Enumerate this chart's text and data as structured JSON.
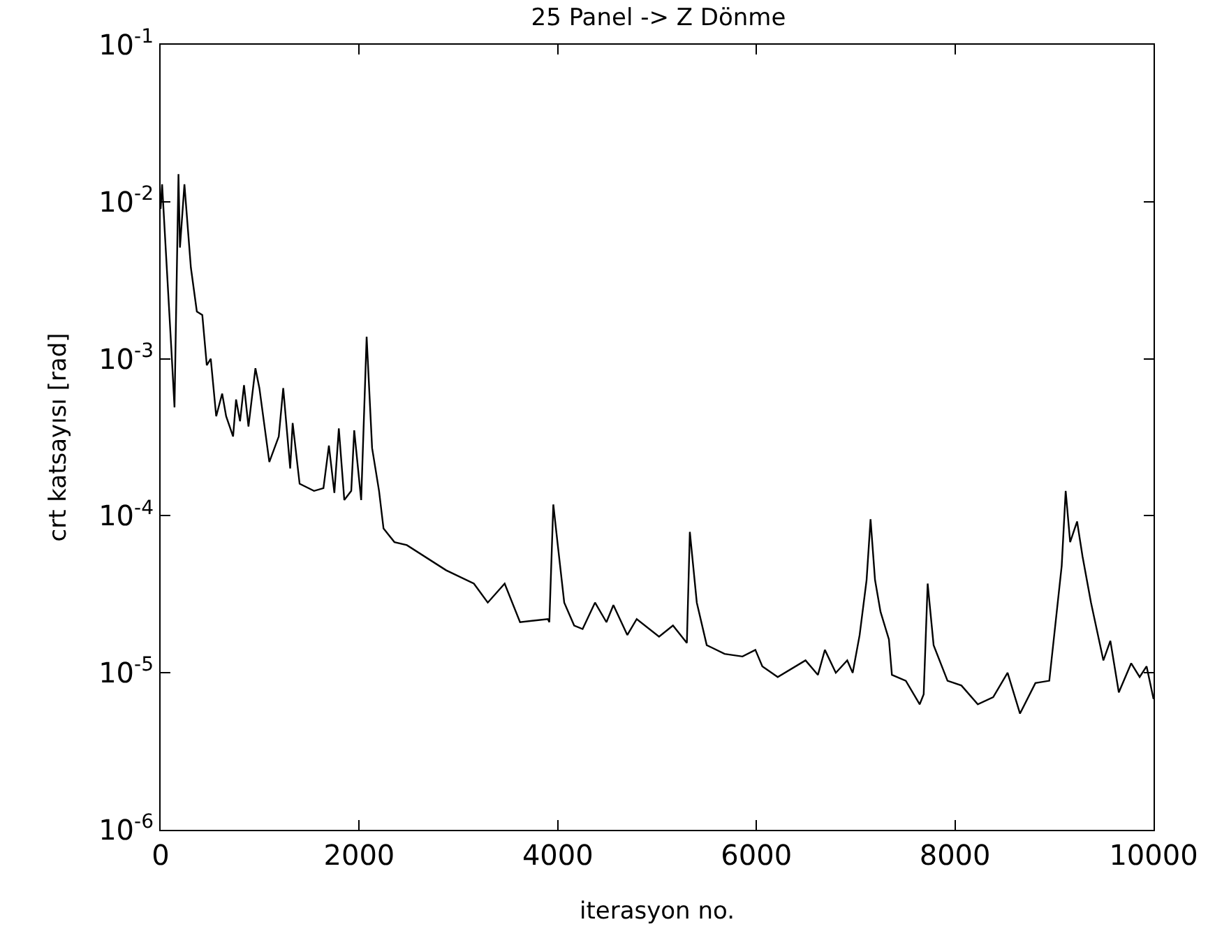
{
  "chart_data": {
    "type": "line",
    "title": "25 Panel -> Z Dönme",
    "xlabel": "iterasyon no.",
    "ylabel": "crt katsayısı [rad]",
    "log": "y",
    "marker": "none",
    "line_style": "solid",
    "xlim": [
      0,
      10000
    ],
    "xticks": [
      0,
      2000,
      4000,
      6000,
      8000,
      10000
    ],
    "ylim": [
      1e-06,
      0.1
    ],
    "yticks": [
      {
        "value": 1e-06,
        "label": "10$^{-6}$"
      },
      {
        "value": 1e-05,
        "label": "10$^{-5}$"
      },
      {
        "value": 0.0001,
        "label": "10$^{-4}$"
      },
      {
        "value": 0.001,
        "label": "10$^{-3}$"
      },
      {
        "value": 0.01,
        "label": "10$^{-2}$"
      },
      {
        "value": 0.1,
        "label": "10$^{-1}$"
      }
    ],
    "series": [
      {
        "color": "#000000",
        "x": [
          0,
          15,
          110,
          140,
          180,
          195,
          240,
          305,
          365,
          420,
          465,
          505,
          560,
          620,
          660,
          730,
          760,
          800,
          840,
          885,
          955,
          995,
          1095,
          1190,
          1235,
          1305,
          1330,
          1400,
          1545,
          1640,
          1695,
          1750,
          1795,
          1850,
          1920,
          1950,
          2020,
          2075,
          2130,
          2200,
          2245,
          2355,
          2480,
          2875,
          3155,
          3295,
          3465,
          3620,
          3900,
          3915,
          3955,
          4000,
          4065,
          4165,
          4250,
          4375,
          4490,
          4560,
          4700,
          4795,
          5020,
          5160,
          5300,
          5330,
          5400,
          5500,
          5680,
          5860,
          5990,
          6060,
          6215,
          6495,
          6620,
          6690,
          6800,
          6915,
          6970,
          7040,
          7110,
          7150,
          7195,
          7250,
          7335,
          7365,
          7505,
          7645,
          7685,
          7725,
          7785,
          7925,
          8065,
          8230,
          8385,
          8530,
          8655,
          8810,
          8950,
          9075,
          9115,
          9160,
          9230,
          9285,
          9370,
          9495,
          9565,
          9650,
          9775,
          9860,
          9930,
          10000
        ],
        "values": [
          0.009,
          0.0129,
          0.0011,
          0.00049,
          0.015,
          0.0051,
          0.0129,
          0.0038,
          0.002,
          0.0019,
          0.00091,
          0.001,
          0.00043,
          0.0006,
          0.00043,
          0.00032,
          0.00055,
          0.0004,
          0.00068,
          0.00037,
          0.00087,
          0.00065,
          0.00022,
          0.00032,
          0.00065,
          0.0002,
          0.00039,
          0.00016,
          0.000144,
          0.00015,
          0.00028,
          0.00014,
          0.00036,
          0.000126,
          0.000144,
          0.00035,
          0.000126,
          0.00138,
          0.00027,
          0.000144,
          8.3e-05,
          6.8e-05,
          6.5e-05,
          4.5e-05,
          3.7e-05,
          2.8e-05,
          3.7e-05,
          2.1e-05,
          2.2e-05,
          2.1e-05,
          0.000118,
          6.5e-05,
          2.8e-05,
          2e-05,
          1.9e-05,
          2.8e-05,
          2.1e-05,
          2.7e-05,
          1.74e-05,
          2.2e-05,
          1.7e-05,
          2e-05,
          1.55e-05,
          7.9e-05,
          2.8e-05,
          1.5e-05,
          1.32e-05,
          1.27e-05,
          1.4e-05,
          1.1e-05,
          9.4e-06,
          1.2e-05,
          9.7e-06,
          1.4e-05,
          1e-05,
          1.2e-05,
          1e-05,
          1.74e-05,
          3.9e-05,
          9.5e-05,
          3.9e-05,
          2.45e-05,
          1.63e-05,
          9.7e-06,
          8.9e-06,
          6.3e-06,
          7.3e-06,
          3.7e-05,
          1.5e-05,
          8.9e-06,
          8.3e-06,
          6.3e-06,
          7e-06,
          1e-05,
          5.5e-06,
          8.6e-06,
          8.9e-06,
          4.8e-05,
          0.000144,
          6.8e-05,
          9.2e-05,
          5.5e-05,
          2.8e-05,
          1.2e-05,
          1.6e-05,
          7.5e-06,
          1.15e-05,
          9.4e-06,
          1.1e-05,
          6.8e-06
        ]
      }
    ]
  }
}
